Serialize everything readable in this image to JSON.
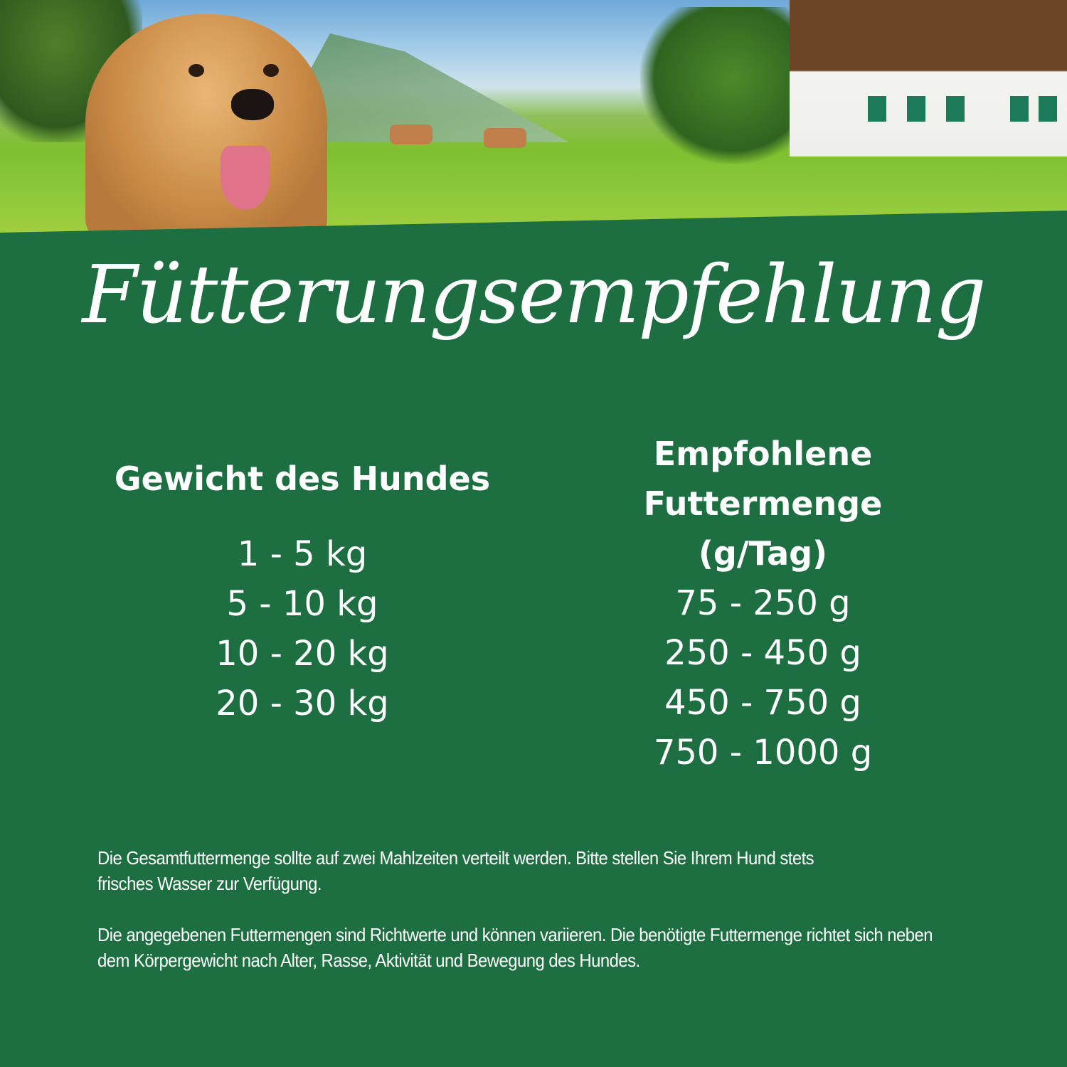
{
  "title": "Fütterungsempfehlung",
  "table": {
    "headers": [
      "Gewicht des Hundes",
      "Empfohlene Futtermenge (g/Tag)"
    ],
    "rows": [
      [
        "1 - 5 kg",
        "75 - 250 g"
      ],
      [
        "5 - 10 kg",
        "250 - 450 g"
      ],
      [
        "10 - 20 kg",
        "450 - 750 g"
      ],
      [
        "20 - 30 kg",
        "750 - 1000 g"
      ]
    ]
  },
  "notes": [
    "Die Gesamtfuttermenge sollte auf zwei Mahlzeiten verteilt werden. Bitte stellen Sie Ihrem Hund stets frisches Wasser zur Verfügung.",
    "Die angegebenen Futtermengen sind Richtwerte und können variieren. Die benötigte Futtermenge richtet sich neben dem Körpergewicht nach Alter, Rasse, Aktivität und Bewegung des Hundes."
  ],
  "colors": {
    "background": "#1d6e41",
    "text": "#ffffff"
  }
}
